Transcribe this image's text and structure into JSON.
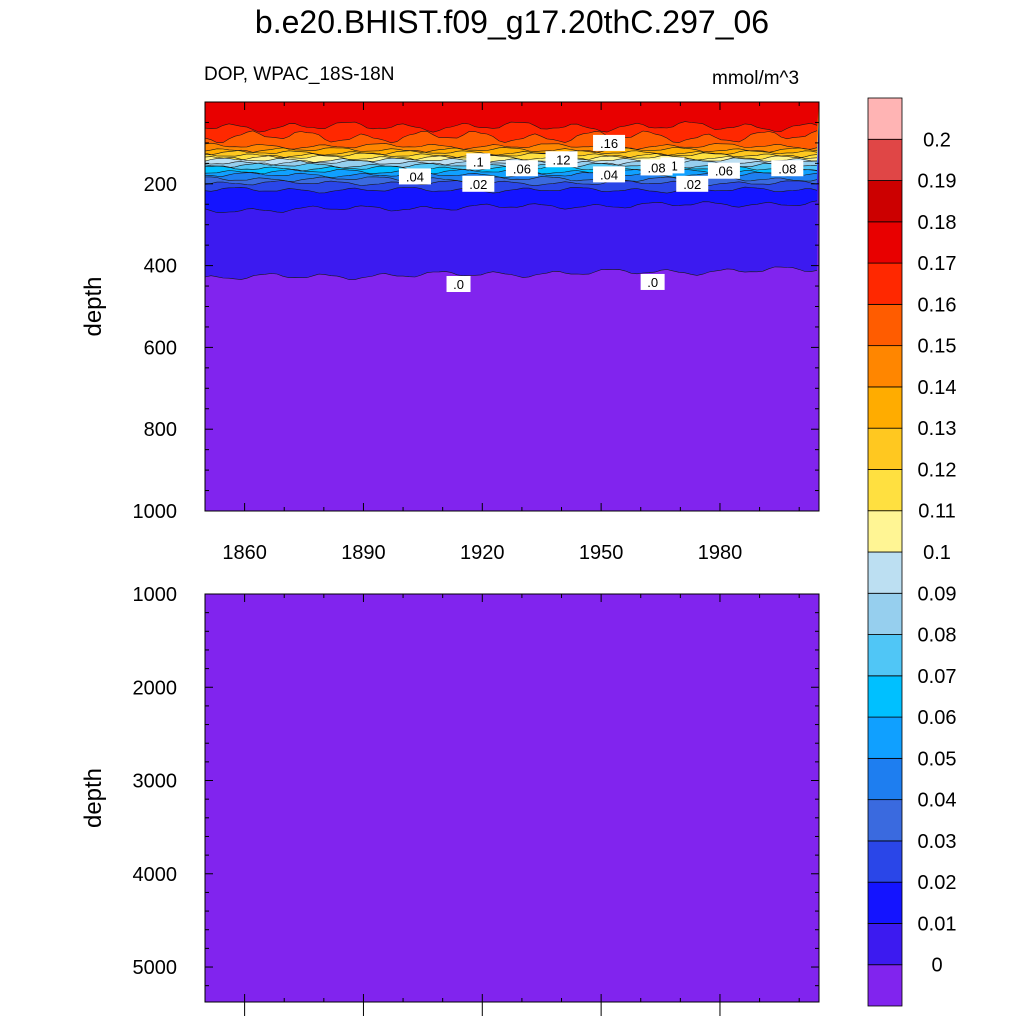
{
  "title": "b.e20.BHIST.f09_g17.20thC.297_06",
  "subtitle_left": "DOP, WPAC_18S-18N",
  "subtitle_right": "mmol/m^3",
  "chart_data": {
    "type": "contour",
    "variable": "DOP",
    "region": "WPAC_18S-18N",
    "units": "mmol/m^3",
    "x_range": [
      1850,
      2005
    ],
    "x_ticks": [
      1860,
      1890,
      1920,
      1950,
      1980
    ],
    "upper_panel": {
      "ylabel": "depth",
      "y_range": [
        0,
        1000
      ],
      "y_ticks": [
        200,
        400,
        600,
        800,
        1000
      ],
      "contour_labels": [
        {
          "text": ".16",
          "x": 1952,
          "depth": 100
        },
        {
          "text": ".12",
          "x": 1940,
          "depth": 140
        },
        {
          "text": ".1",
          "x": 1919,
          "depth": 145
        },
        {
          "text": ".1",
          "x": 1968,
          "depth": 155
        },
        {
          "text": ".08",
          "x": 1964,
          "depth": 160
        },
        {
          "text": ".06",
          "x": 1930,
          "depth": 162
        },
        {
          "text": ".06",
          "x": 1981,
          "depth": 168
        },
        {
          "text": ".08",
          "x": 1997,
          "depth": 162
        },
        {
          "text": ".04",
          "x": 1903,
          "depth": 182
        },
        {
          "text": ".04",
          "x": 1952,
          "depth": 177
        },
        {
          "text": ".02",
          "x": 1919,
          "depth": 200
        },
        {
          "text": ".02",
          "x": 1973,
          "depth": 200
        },
        {
          "text": ".0",
          "x": 1914,
          "depth": 445
        },
        {
          "text": ".0",
          "x": 1963,
          "depth": 440
        }
      ]
    },
    "lower_panel": {
      "ylabel": "depth",
      "y_range": [
        1000,
        5375
      ],
      "y_ticks": [
        1000,
        2000,
        3000,
        4000,
        5000
      ]
    },
    "colorbar": {
      "labels": [
        "0",
        "0.01",
        "0.02",
        "0.03",
        "0.04",
        "0.05",
        "0.06",
        "0.07",
        "0.08",
        "0.09",
        "0.1",
        "0.11",
        "0.12",
        "0.13",
        "0.14",
        "0.15",
        "0.16",
        "0.17",
        "0.18",
        "0.19",
        "0.2"
      ],
      "colors": [
        "#8124ee",
        "#3c1af0",
        "#1414ff",
        "#2a46e8",
        "#3a6adf",
        "#1e7ef0",
        "#10a0ff",
        "#00c0ff",
        "#50c6f6",
        "#96cfee",
        "#bcdff2",
        "#fff594",
        "#ffe040",
        "#ffc820",
        "#ffac00",
        "#ff8600",
        "#ff5c00",
        "#ff2800",
        "#e80000",
        "#cc0000",
        "#e04646",
        "#ffb4b4"
      ]
    }
  }
}
